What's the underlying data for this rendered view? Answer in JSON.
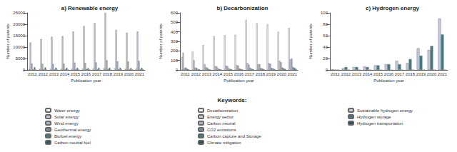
{
  "legend_title": "Keywords:",
  "chart_data": [
    {
      "type": "bar",
      "title": "a) Renewable energy",
      "x_label": "Publication year",
      "y_label": "Number of patents",
      "categories": [
        "2011",
        "2012",
        "2013",
        "2014",
        "2015",
        "2016",
        "2017",
        "2018",
        "2019",
        "2020",
        "2021"
      ],
      "ylim": [
        0,
        25000
      ],
      "yticks": [
        0,
        5000,
        10000,
        15000,
        20000,
        25000
      ],
      "legend": "bottom",
      "grid": false,
      "series": [
        {
          "name": "Water energy",
          "color": "#f4f4f8",
          "values": [
            400,
            500,
            500,
            500,
            600,
            600,
            700,
            800,
            700,
            600,
            600
          ]
        },
        {
          "name": "Solar energy",
          "color": "#c8c8de",
          "values": [
            12000,
            13500,
            14500,
            14800,
            16800,
            19200,
            20500,
            25000,
            17500,
            16300,
            16800
          ]
        },
        {
          "name": "Wind energy",
          "color": "#a9b6cf",
          "values": [
            2800,
            2700,
            2600,
            2700,
            3200,
            3100,
            3300,
            4200,
            3800,
            3700,
            4000
          ]
        },
        {
          "name": "Geothermal energy",
          "color": "#7096ab",
          "values": [
            200,
            250,
            250,
            250,
            300,
            300,
            300,
            350,
            300,
            300,
            300
          ]
        },
        {
          "name": "Biofuel energy",
          "color": "#3f7c86",
          "values": [
            1200,
            1100,
            1000,
            900,
            900,
            800,
            900,
            1000,
            900,
            800,
            900
          ]
        },
        {
          "name": "Carbon neutral fuel",
          "color": "#1f5a61",
          "values": [
            50,
            50,
            50,
            60,
            60,
            70,
            80,
            100,
            120,
            150,
            200
          ]
        }
      ]
    },
    {
      "type": "bar",
      "title": "b) Decarbonization",
      "x_label": "Publication year",
      "y_label": "Number of patents",
      "categories": [
        "2011",
        "2012",
        "2013",
        "2014",
        "2015",
        "2016",
        "2017",
        "2018",
        "2019",
        "2020",
        "2021"
      ],
      "ylim": [
        0,
        600
      ],
      "yticks": [
        0,
        100,
        200,
        300,
        400,
        500,
        600
      ],
      "legend": "bottom",
      "grid": false,
      "series": [
        {
          "name": "Decarbonization",
          "color": "#f4f4f8",
          "values": [
            135,
            195,
            260,
            355,
            365,
            370,
            525,
            490,
            480,
            400,
            440
          ]
        },
        {
          "name": "Energy sector",
          "color": "#c8c8de",
          "values": [
            180,
            100,
            60,
            40,
            45,
            50,
            75,
            60,
            70,
            95,
            110
          ]
        },
        {
          "name": "Carbon neutral",
          "color": "#a9b6cf",
          "values": [
            20,
            25,
            30,
            35,
            40,
            45,
            55,
            60,
            65,
            80,
            120
          ]
        },
        {
          "name": "CO2 emissions",
          "color": "#7096ab",
          "values": [
            25,
            20,
            20,
            15,
            15,
            15,
            20,
            20,
            20,
            25,
            30
          ]
        },
        {
          "name": "Carbon capture and Storage",
          "color": "#3f7c86",
          "values": [
            10,
            8,
            8,
            8,
            10,
            10,
            12,
            12,
            15,
            15,
            20
          ]
        },
        {
          "name": "Climate mitigation",
          "color": "#1f5a61",
          "values": [
            5,
            5,
            5,
            5,
            5,
            5,
            8,
            8,
            8,
            10,
            12
          ]
        }
      ]
    },
    {
      "type": "bar",
      "title": "c) Hydrogen energy",
      "x_label": "Publication year",
      "y_label": "Number of patents",
      "categories": [
        "2011",
        "2012",
        "2013",
        "2014",
        "2015",
        "2016",
        "2017",
        "2018",
        "2019",
        "2020",
        "2021"
      ],
      "ylim": [
        0,
        100
      ],
      "yticks": [
        0,
        20,
        40,
        60,
        80,
        100
      ],
      "legend": "bottom",
      "grid": false,
      "series": [
        {
          "name": "Sustainable hydrogen energy",
          "color": "#c8c8de",
          "values": [
            1,
            3,
            5,
            6,
            8,
            10,
            16,
            12,
            38,
            35,
            90
          ]
        },
        {
          "name": "Hydrogen storage",
          "color": "#3f7c86",
          "values": [
            0,
            5,
            5,
            5,
            8,
            10,
            10,
            19,
            25,
            42,
            62
          ]
        },
        {
          "name": "Hydrogen transportation",
          "color": "#1f5a61",
          "values": [
            0,
            0,
            0,
            0,
            0,
            0,
            0,
            0,
            0,
            0,
            0
          ]
        }
      ]
    }
  ]
}
